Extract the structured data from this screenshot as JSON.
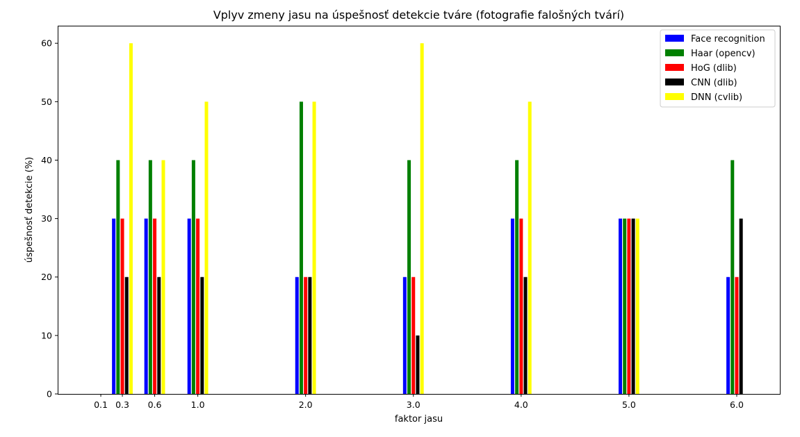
{
  "chart_data": {
    "type": "bar",
    "title": "Vplyv zmeny jasu na úspešnosť detekcie tváre (fotografie falošných tvárí)",
    "xlabel": "faktor jasu",
    "ylabel": "úspešnosť detekcie (%)",
    "x": [
      0.1,
      0.3,
      0.6,
      1.0,
      2.0,
      3.0,
      4.0,
      5.0,
      6.0
    ],
    "x_tick_labels": [
      "0.1",
      "0.3",
      "0.6",
      "1.0",
      "2.0",
      "3.0",
      "4.0",
      "5.0",
      "6.0"
    ],
    "xlim": [
      -0.3,
      6.4
    ],
    "ylim": [
      0,
      63
    ],
    "y_ticks": [
      0,
      10,
      20,
      30,
      40,
      50,
      60
    ],
    "legend_position": "top-right",
    "grid": false,
    "series": [
      {
        "name": "Face recognition",
        "color": "#0000ff",
        "values": [
          0,
          30,
          30,
          30,
          20,
          20,
          30,
          30,
          20
        ]
      },
      {
        "name": "Haar (opencv)",
        "color": "#008000",
        "values": [
          0,
          40,
          40,
          40,
          50,
          40,
          40,
          30,
          40
        ]
      },
      {
        "name": "HoG (dlib)",
        "color": "#ff0000",
        "values": [
          0,
          30,
          30,
          30,
          20,
          20,
          30,
          30,
          20
        ]
      },
      {
        "name": "CNN (dlib)",
        "color": "#000000",
        "values": [
          0,
          20,
          20,
          20,
          20,
          10,
          20,
          30,
          30
        ]
      },
      {
        "name": "DNN (cvlib)",
        "color": "#ffff00",
        "values": [
          0,
          60,
          40,
          50,
          50,
          60,
          50,
          30,
          0
        ]
      }
    ]
  }
}
